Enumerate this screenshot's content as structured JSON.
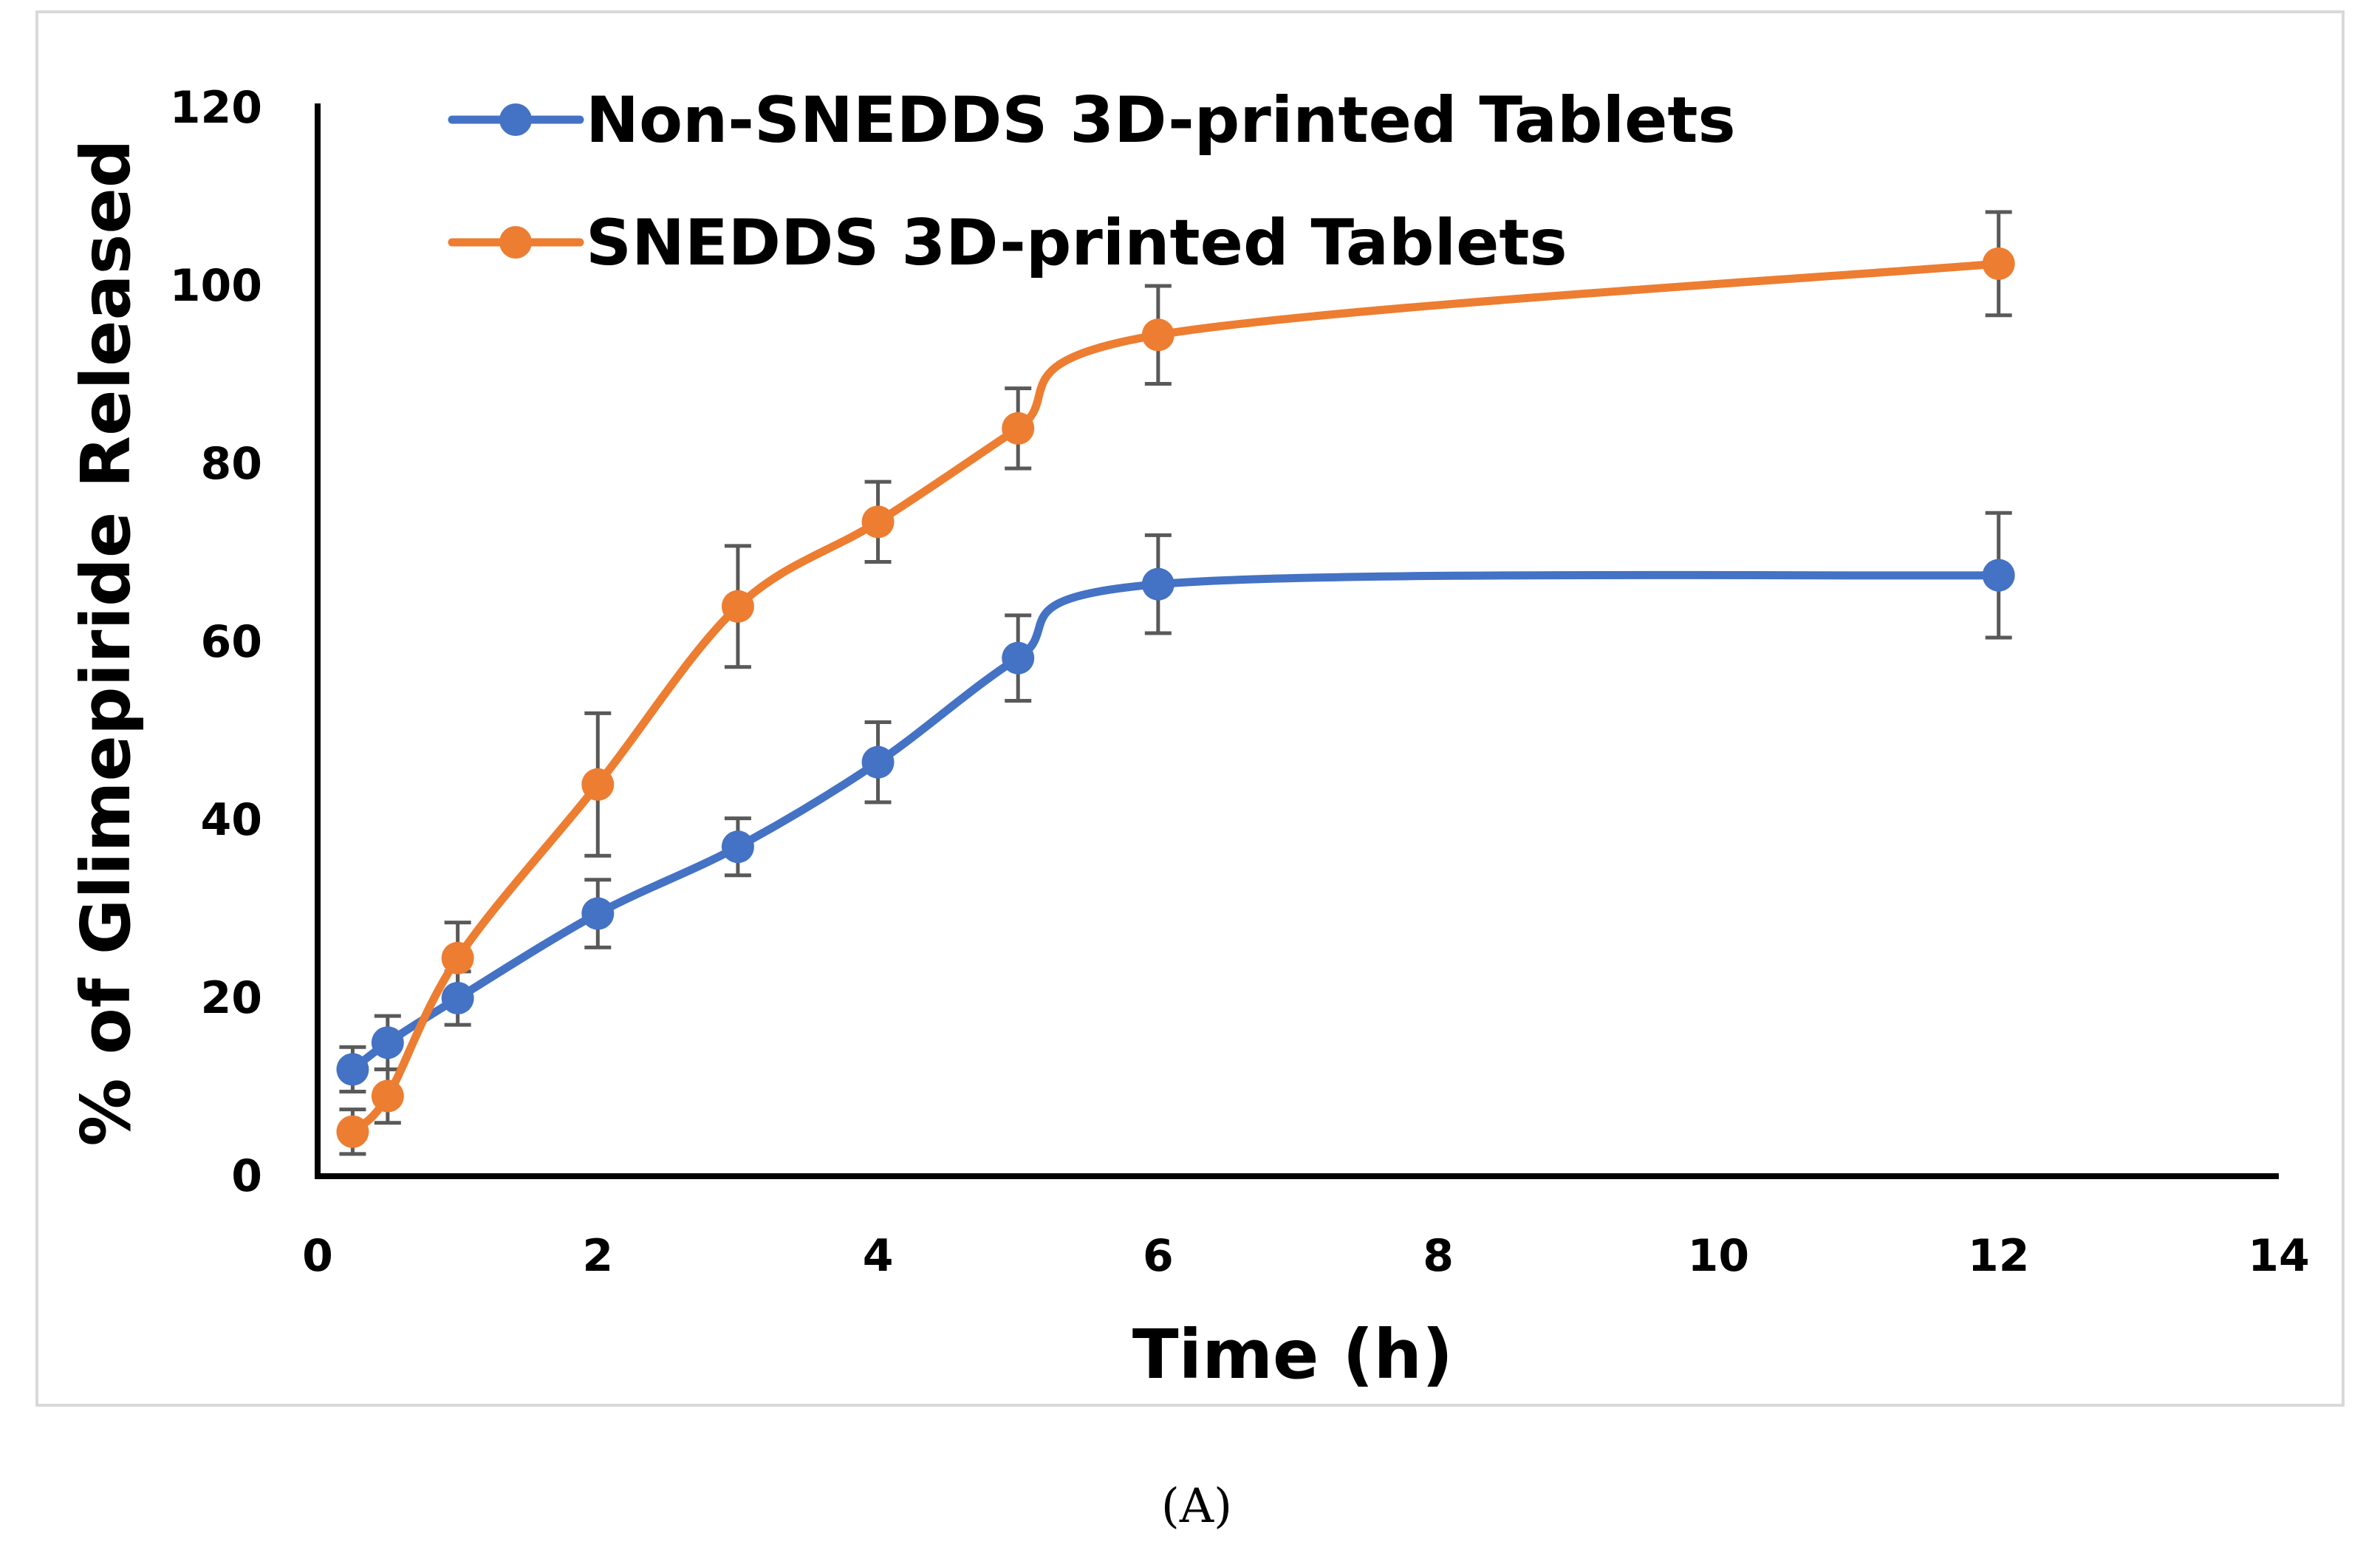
{
  "caption": "(A)",
  "chart_data": {
    "type": "line",
    "title": "",
    "xlabel": "Time (h)",
    "ylabel": "% of Glimepiride Released",
    "xlim": [
      0,
      14
    ],
    "ylim": [
      0,
      120
    ],
    "xticks": [
      0,
      2,
      4,
      6,
      8,
      10,
      12,
      14
    ],
    "yticks": [
      0,
      20,
      40,
      60,
      80,
      100,
      120
    ],
    "grid": false,
    "legend": "top-left",
    "series": [
      {
        "name": "Non-SNEDDS 3D-printed Tablets",
        "color": "#4472C4",
        "x": [
          0.25,
          0.5,
          1,
          2,
          3,
          4,
          5,
          6,
          12
        ],
        "y": [
          12,
          15,
          20,
          29.5,
          37,
          46.5,
          58.2,
          66.5,
          67.5
        ],
        "error": [
          2.5,
          3,
          3,
          3.8,
          3.2,
          4.5,
          4.8,
          5.5,
          7
        ]
      },
      {
        "name": "SNEDDS 3D-printed Tablets",
        "color": "#ED7D31",
        "x": [
          0.25,
          0.5,
          1,
          2,
          3,
          4,
          5,
          6,
          12
        ],
        "y": [
          5,
          9,
          24.5,
          44,
          64,
          73.5,
          84,
          94.5,
          102.5
        ],
        "error": [
          2.5,
          3,
          4,
          8,
          6.8,
          4.5,
          4.5,
          5.5,
          5.8
        ]
      }
    ]
  }
}
